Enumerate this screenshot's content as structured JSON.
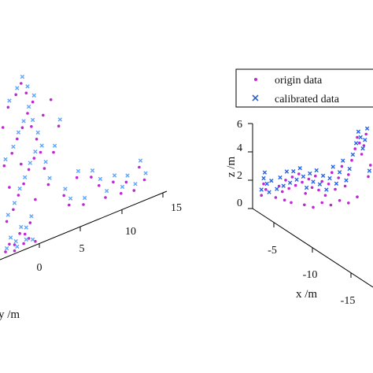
{
  "colors": {
    "origin": "#c026d3",
    "calibrated": "#2563eb",
    "calibrated_light": "#60a5fa",
    "axis": "#000000"
  },
  "chart_data": [
    {
      "type": "scatter",
      "projection": "3d",
      "xlabel": "",
      "ylabel": "y /m",
      "zlabel": "",
      "y_ticks": [
        0,
        5,
        10,
        15
      ],
      "x_ticks": [],
      "z_ticks": [],
      "series": [
        {
          "marker": "dot",
          "color": "#c026d3",
          "points": [
            [
              0.3,
              0.2
            ],
            [
              0.6,
              0.4
            ],
            [
              1.0,
              0.3
            ],
            [
              1.4,
              0.6
            ],
            [
              1.8,
              0.5
            ],
            [
              2.2,
              0.8
            ],
            [
              0.4,
              1.2
            ],
            [
              0.9,
              1.5
            ],
            [
              1.3,
              1.9
            ],
            [
              1.7,
              2.2
            ],
            [
              2.1,
              2.6
            ],
            [
              2.5,
              2.9
            ],
            [
              0.2,
              3.1
            ],
            [
              0.8,
              3.4
            ],
            [
              1.2,
              3.8
            ],
            [
              1.6,
              4.1
            ],
            [
              2.0,
              4.5
            ],
            [
              2.4,
              4.8
            ],
            [
              0.5,
              5.0
            ],
            [
              1.1,
              5.3
            ],
            [
              1.5,
              5.6
            ],
            [
              1.9,
              5.2
            ],
            [
              2.3,
              4.0
            ],
            [
              2.7,
              3.5
            ],
            [
              3.0,
              3.0
            ],
            [
              3.3,
              2.4
            ],
            [
              3.6,
              1.8
            ],
            [
              4.0,
              2.8
            ],
            [
              4.4,
              3.6
            ],
            [
              4.8,
              1.2
            ],
            [
              5.2,
              0.8
            ],
            [
              5.8,
              1.6
            ],
            [
              6.3,
              0.6
            ],
            [
              6.9,
              1.4
            ],
            [
              7.5,
              1.0
            ],
            [
              8.0,
              0.5
            ],
            [
              8.6,
              0.9
            ],
            [
              9.2,
              0.4
            ],
            [
              9.6,
              0.7
            ],
            [
              10.2,
              0.3
            ],
            [
              10.6,
              1.0
            ],
            [
              11.0,
              0.5
            ],
            [
              3.2,
              4.2
            ],
            [
              3.8,
              4.6
            ],
            [
              0.6,
              2.3
            ],
            [
              1.5,
              2.9
            ],
            [
              2.6,
              1.5
            ],
            [
              0.1,
              4.4
            ],
            [
              1.0,
              0.1
            ],
            [
              1.7,
              0.2
            ],
            [
              2.1,
              0.3
            ],
            [
              2.6,
              0.1
            ]
          ]
        },
        {
          "marker": "cross",
          "color": "#60a5fa",
          "points": [
            [
              0.4,
              0.3
            ],
            [
              0.7,
              0.6
            ],
            [
              1.1,
              0.4
            ],
            [
              1.5,
              0.8
            ],
            [
              1.9,
              0.7
            ],
            [
              2.3,
              1.0
            ],
            [
              0.5,
              1.4
            ],
            [
              1.0,
              1.7
            ],
            [
              1.4,
              2.1
            ],
            [
              1.8,
              2.4
            ],
            [
              2.2,
              2.8
            ],
            [
              2.6,
              3.1
            ],
            [
              0.3,
              3.3
            ],
            [
              0.9,
              3.6
            ],
            [
              1.3,
              4.0
            ],
            [
              1.7,
              4.3
            ],
            [
              2.1,
              4.7
            ],
            [
              2.5,
              5.0
            ],
            [
              0.6,
              5.2
            ],
            [
              1.2,
              5.5
            ],
            [
              1.6,
              5.8
            ],
            [
              2.0,
              5.4
            ],
            [
              2.4,
              4.2
            ],
            [
              2.8,
              3.7
            ],
            [
              3.1,
              3.2
            ],
            [
              3.4,
              2.6
            ],
            [
              3.7,
              2.0
            ],
            [
              4.1,
              3.0
            ],
            [
              4.5,
              3.8
            ],
            [
              4.9,
              1.4
            ],
            [
              5.3,
              1.0
            ],
            [
              5.9,
              1.8
            ],
            [
              6.4,
              0.8
            ],
            [
              7.0,
              1.6
            ],
            [
              7.6,
              1.2
            ],
            [
              8.1,
              0.7
            ],
            [
              8.7,
              1.1
            ],
            [
              9.3,
              0.6
            ],
            [
              9.7,
              0.9
            ],
            [
              10.3,
              0.5
            ],
            [
              10.7,
              1.2
            ],
            [
              11.1,
              0.7
            ],
            [
              1.2,
              0.2
            ],
            [
              1.9,
              0.3
            ],
            [
              2.4,
              0.2
            ]
          ]
        }
      ]
    },
    {
      "type": "scatter",
      "projection": "3d",
      "xlabel": "x /m",
      "ylabel": "",
      "zlabel": "z /m",
      "x_ticks": [
        -5,
        -10,
        -15
      ],
      "z_ticks": [
        0,
        2,
        4,
        6
      ],
      "zlim": [
        0,
        6
      ],
      "legend": {
        "placement": "top-right",
        "entries": [
          {
            "label": "origin data",
            "marker": "dot",
            "color": "#c026d3"
          },
          {
            "label": "calibrated data",
            "marker": "cross",
            "color": "#2563eb"
          }
        ]
      },
      "series": [
        {
          "name": "origin data",
          "marker": "dot",
          "color": "#c026d3",
          "points": [
            [
              0.3,
              1.2
            ],
            [
              0.5,
              2.0
            ],
            [
              0.7,
              1.6
            ],
            [
              1.6,
              1.0
            ],
            [
              1.9,
              1.8
            ],
            [
              2.2,
              1.4
            ],
            [
              2.5,
              2.2
            ],
            [
              2.8,
              1.6
            ],
            [
              3.1,
              2.4
            ],
            [
              3.4,
              1.8
            ],
            [
              3.7,
              2.6
            ],
            [
              4.0,
              2.0
            ],
            [
              4.3,
              1.2
            ],
            [
              4.6,
              2.2
            ],
            [
              4.9,
              1.6
            ],
            [
              5.2,
              2.4
            ],
            [
              5.5,
              1.4
            ],
            [
              5.8,
              2.0
            ],
            [
              6.1,
              1.0
            ],
            [
              6.4,
              1.8
            ],
            [
              6.7,
              2.6
            ],
            [
              7.0,
              1.4
            ],
            [
              7.3,
              2.2
            ],
            [
              7.6,
              3.0
            ],
            [
              7.9,
              1.6
            ],
            [
              8.2,
              2.4
            ],
            [
              8.5,
              3.4
            ],
            [
              8.8,
              4.2
            ],
            [
              9.0,
              5.0
            ],
            [
              9.2,
              4.6
            ],
            [
              9.4,
              3.8
            ],
            [
              9.6,
              4.4
            ],
            [
              9.8,
              5.2
            ],
            [
              10.0,
              2.2
            ],
            [
              10.2,
              3.0
            ],
            [
              4.2,
              0.4
            ],
            [
              5.0,
              0.2
            ],
            [
              5.8,
              0.5
            ],
            [
              6.6,
              0.3
            ],
            [
              7.4,
              0.6
            ],
            [
              8.2,
              0.4
            ],
            [
              9.0,
              0.8
            ],
            [
              3.0,
              0.6
            ],
            [
              2.4,
              0.8
            ]
          ]
        },
        {
          "name": "calibrated data",
          "marker": "cross",
          "color": "#2563eb",
          "points": [
            [
              0.3,
              1.6
            ],
            [
              0.5,
              2.4
            ],
            [
              0.6,
              2.8
            ],
            [
              0.8,
              2.0
            ],
            [
              1.0,
              1.4
            ],
            [
              1.2,
              2.2
            ],
            [
              1.7,
              1.6
            ],
            [
              2.0,
              2.4
            ],
            [
              2.3,
              1.8
            ],
            [
              2.6,
              2.8
            ],
            [
              2.9,
              2.0
            ],
            [
              3.2,
              2.8
            ],
            [
              3.5,
              2.2
            ],
            [
              3.8,
              3.0
            ],
            [
              4.1,
              2.4
            ],
            [
              4.4,
              1.6
            ],
            [
              4.7,
              2.6
            ],
            [
              5.0,
              2.0
            ],
            [
              5.3,
              2.8
            ],
            [
              5.6,
              1.8
            ],
            [
              5.9,
              2.4
            ],
            [
              6.2,
              1.4
            ],
            [
              6.5,
              2.2
            ],
            [
              6.8,
              3.0
            ],
            [
              7.1,
              1.8
            ],
            [
              7.4,
              2.6
            ],
            [
              7.7,
              3.4
            ],
            [
              8.0,
              2.0
            ],
            [
              8.3,
              2.8
            ],
            [
              8.6,
              3.8
            ],
            [
              8.9,
              4.6
            ],
            [
              9.1,
              5.4
            ],
            [
              9.3,
              5.0
            ],
            [
              9.5,
              4.2
            ],
            [
              9.7,
              4.8
            ],
            [
              9.9,
              5.6
            ],
            [
              10.1,
              2.6
            ],
            [
              10.3,
              3.4
            ],
            [
              10.4,
              2.0
            ]
          ]
        }
      ]
    }
  ]
}
